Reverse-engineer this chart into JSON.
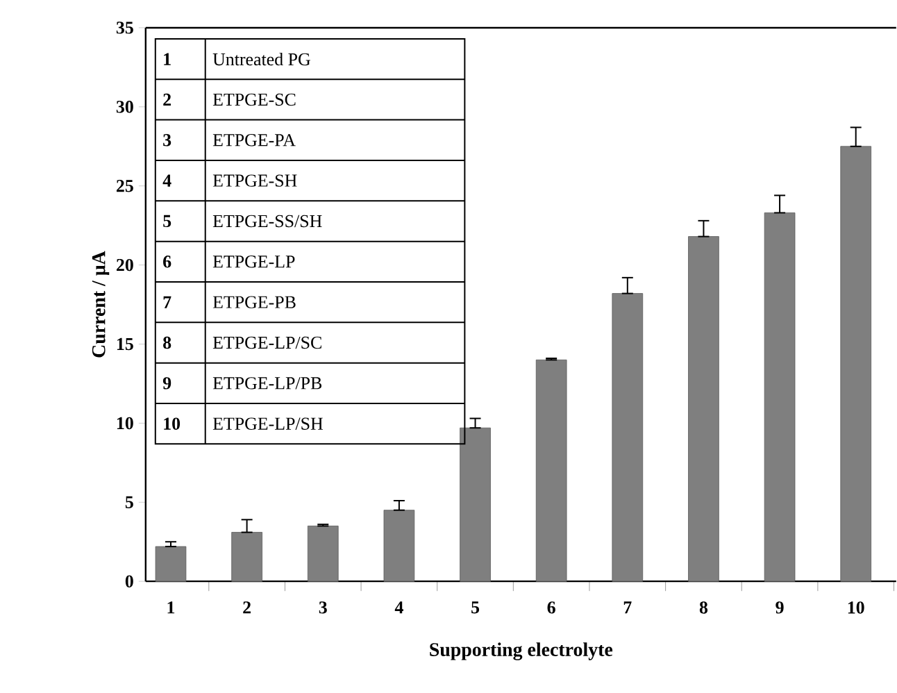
{
  "chart_data": {
    "type": "bar",
    "xlabel": "Supporting electrolyte",
    "ylabel": "Current / μA",
    "categories": [
      "1",
      "2",
      "3",
      "4",
      "5",
      "6",
      "7",
      "8",
      "9",
      "10"
    ],
    "values": [
      2.2,
      3.1,
      3.5,
      4.5,
      9.7,
      14.0,
      18.2,
      21.8,
      23.3,
      27.5
    ],
    "errors": [
      [
        2.2,
        2.5
      ],
      [
        3.1,
        3.9
      ],
      [
        3.5,
        3.6
      ],
      [
        4.5,
        5.1
      ],
      [
        9.7,
        10.3
      ],
      [
        14.0,
        14.1
      ],
      [
        18.2,
        19.2
      ],
      [
        21.8,
        22.8
      ],
      [
        23.3,
        24.4
      ],
      [
        27.5,
        28.7
      ]
    ],
    "color": "#7f7f7f",
    "ylim": [
      0,
      35
    ],
    "yticks": [
      0,
      5,
      10,
      15,
      20,
      25,
      30,
      35
    ],
    "grid": false,
    "annotations": [
      "Untreated PG",
      "ETPGE-SC",
      "ETPGE-PA",
      "ETPGE-SH",
      "ETPGE-SS/SH",
      "ETPGE-LP",
      "ETPGE-PB",
      "ETPGE-LP/SC",
      "ETPGE-LP/PB",
      "ETPGE-LP/SH"
    ]
  }
}
